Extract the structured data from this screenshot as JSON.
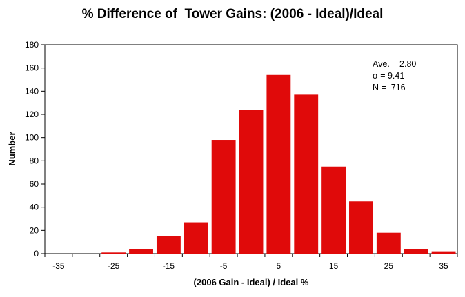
{
  "chart_data": {
    "type": "bar",
    "title": "% Difference of  Tower Gains: (2006 - Ideal)/Ideal",
    "xlabel": "(2006 Gain - Ideal) / Ideal %",
    "ylabel": "Number",
    "bin_centers": [
      -35,
      -30,
      -25,
      -20,
      -15,
      -10,
      -5,
      0,
      5,
      10,
      15,
      20,
      25,
      30,
      35
    ],
    "values": [
      0,
      0,
      1,
      4,
      15,
      27,
      98,
      124,
      154,
      137,
      75,
      45,
      18,
      4,
      2
    ],
    "x_tick_labels": [
      "-35",
      "-25",
      "-15",
      "-5",
      "5",
      "15",
      "25",
      "35"
    ],
    "x_tick_values": [
      -35,
      -25,
      -15,
      -5,
      5,
      15,
      25,
      35
    ],
    "xlim": [
      -37.5,
      37.5
    ],
    "ylim": [
      0,
      180
    ],
    "y_ticks": [
      0,
      20,
      40,
      60,
      80,
      100,
      120,
      140,
      160,
      180
    ],
    "grid": false,
    "bar_color": "#e00a0a",
    "annotations": [
      "Ave. = 2.80",
      "σ = 9.41",
      "N =  716"
    ]
  }
}
